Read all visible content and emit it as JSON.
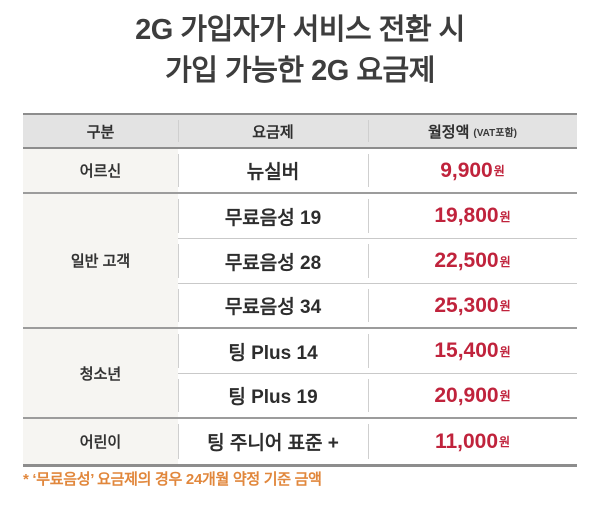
{
  "title": {
    "line1": "2G 가입자가 서비스 전환 시",
    "line2": "가입 가능한 2G 요금제"
  },
  "table": {
    "headers": {
      "col1": "구분",
      "col2": "요금제",
      "col3": "월정액",
      "col3_note": "(VAT포함)"
    },
    "categories": [
      "어르신",
      "일반 고객",
      "청소년",
      "어린이"
    ],
    "plans": [
      {
        "name": "뉴실버",
        "price": "9,900",
        "unit": "원"
      },
      {
        "name": "무료음성 19",
        "price": "19,800",
        "unit": "원"
      },
      {
        "name": "무료음성 28",
        "price": "22,500",
        "unit": "원"
      },
      {
        "name": "무료음성 34",
        "price": "25,300",
        "unit": "원"
      },
      {
        "name": "팅 Plus 14",
        "price": "15,400",
        "unit": "원"
      },
      {
        "name": "팅 Plus 19",
        "price": "20,900",
        "unit": "원"
      },
      {
        "name": "팅 주니어 표준 +",
        "price": "11,000",
        "unit": "원"
      }
    ]
  },
  "footnote": {
    "text": "* ‘무료음성’ 요금제의 경우 24개월 약정 기준 금액"
  },
  "colors": {
    "price_red": "#c0233c",
    "footnote_orange": "#e1873c",
    "header_bg": "#e3e3e3",
    "category_bg": "#f6f5f2",
    "border_dark": "#8d8d8d",
    "border_group": "#9c9c9c",
    "border_thin": "#c9c9c9",
    "title_text": "#3d3d3d"
  },
  "chart_data": {
    "type": "table",
    "title": "2G 가입자가 서비스 전환 시 가입 가능한 2G 요금제",
    "columns": [
      "구분",
      "요금제",
      "월정액 (VAT포함)"
    ],
    "rows": [
      [
        "어르신",
        "뉴실버",
        "9,900원"
      ],
      [
        "일반 고객",
        "무료음성 19",
        "19,800원"
      ],
      [
        "일반 고객",
        "무료음성 28",
        "22,500원"
      ],
      [
        "일반 고객",
        "무료음성 34",
        "25,300원"
      ],
      [
        "청소년",
        "팅 Plus 14",
        "15,400원"
      ],
      [
        "청소년",
        "팅 Plus 19",
        "20,900원"
      ],
      [
        "어린이",
        "팅 주니어 표준 +",
        "11,000원"
      ]
    ],
    "merged_first_column_groups": [
      {
        "category": "어르신",
        "row_span": 1
      },
      {
        "category": "일반 고객",
        "row_span": 3
      },
      {
        "category": "청소년",
        "row_span": 2
      },
      {
        "category": "어린이",
        "row_span": 1
      }
    ],
    "footnote": "* ‘무료음성’ 요금제의 경우 24개월 약정 기준 금액"
  }
}
